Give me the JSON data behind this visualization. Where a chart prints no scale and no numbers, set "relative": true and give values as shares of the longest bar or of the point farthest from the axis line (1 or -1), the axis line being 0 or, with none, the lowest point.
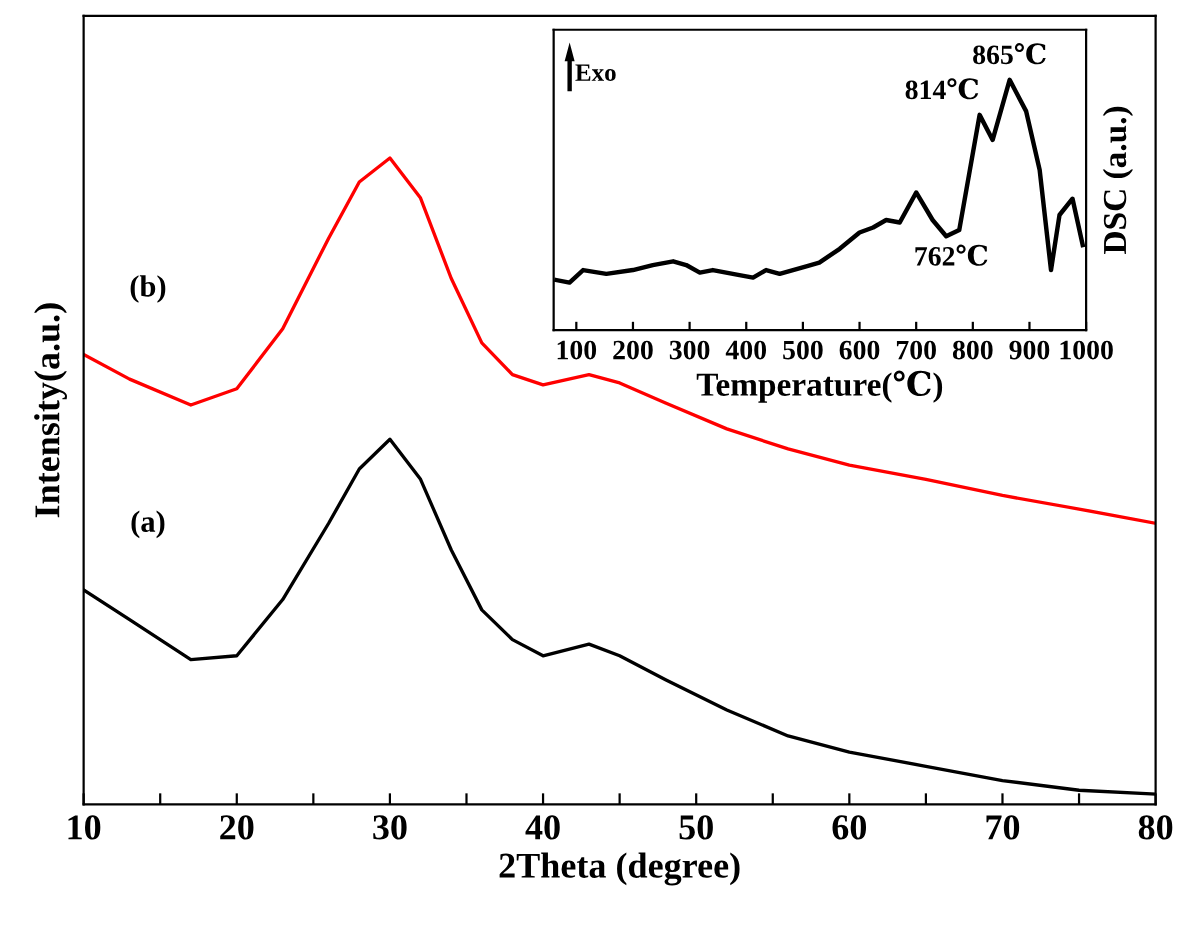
{
  "chart_data": [
    {
      "type": "line",
      "xlabel": "2Theta (degree)",
      "ylabel": "Intensity(a.u.)",
      "relative": true,
      "xlim": [
        10,
        80
      ],
      "xticks": [
        10,
        {
          "value": 15,
          "label": null
        },
        20,
        {
          "value": 25,
          "label": null
        },
        30,
        {
          "value": 35,
          "label": null
        },
        40,
        {
          "value": 45,
          "label": null
        },
        50,
        {
          "value": 55,
          "label": null
        },
        60,
        {
          "value": 65,
          "label": null
        },
        70,
        {
          "value": 75,
          "label": null
        },
        80
      ],
      "tick_labels": "x",
      "grid": false,
      "legend": false,
      "marker": "none",
      "line_style": "solid",
      "x": [
        10,
        13,
        17,
        20,
        23,
        26,
        28,
        30,
        32,
        34,
        36,
        38,
        40,
        43,
        45,
        48,
        52,
        56,
        60,
        65,
        70,
        75,
        80
      ],
      "series": [
        {
          "name": "(b)",
          "color": "#ff0000",
          "values": [
            0.696,
            0.658,
            0.618,
            0.643,
            0.736,
            0.876,
            0.963,
            1,
            0.938,
            0.814,
            0.714,
            0.665,
            0.649,
            0.665,
            0.652,
            0.621,
            0.581,
            0.55,
            0.525,
            0.503,
            0.478,
            0.457,
            0.435
          ]
        },
        {
          "name": "(a)",
          "color": "#000000",
          "values": [
            0.332,
            0.286,
            0.224,
            0.23,
            0.317,
            0.435,
            0.519,
            0.565,
            0.503,
            0.394,
            0.301,
            0.255,
            0.23,
            0.248,
            0.23,
            0.193,
            0.146,
            0.106,
            0.081,
            0.059,
            0.037,
            0.022,
            0.016
          ]
        }
      ]
    },
    {
      "type": "line",
      "xlabel": "Temperature(℃)",
      "y2label": "DSC (a.u.)",
      "relative": true,
      "xlim": [
        60,
        1000
      ],
      "xticks": [
        100,
        200,
        300,
        400,
        500,
        600,
        700,
        800,
        900,
        1000
      ],
      "tick_labels": "x",
      "grid": false,
      "legend": false,
      "marker": "none",
      "line_style": "solid",
      "annotations": [
        "Exo",
        {
          "text": "865℃",
          "x": 865,
          "y": 1
        },
        {
          "text": "814℃",
          "x": 812,
          "y": 0.86
        },
        {
          "text": "762℃",
          "x": 762,
          "y": 0.375
        }
      ],
      "x": [
        65,
        88,
        112,
        153,
        200,
        235,
        271,
        294,
        318,
        341,
        388,
        412,
        435,
        459,
        506,
        529,
        565,
        600,
        624,
        647,
        671,
        700,
        729,
        753,
        776,
        812,
        835,
        865,
        894,
        918,
        938,
        953,
        976,
        994
      ],
      "series": [
        {
          "color": "#000000",
          "values": [
            0.2,
            0.19,
            0.24,
            0.225,
            0.24,
            0.26,
            0.275,
            0.26,
            0.23,
            0.24,
            0.22,
            0.21,
            0.24,
            0.225,
            0.255,
            0.27,
            0.325,
            0.39,
            0.41,
            0.44,
            0.43,
            0.55,
            0.44,
            0.375,
            0.4,
            0.86,
            0.76,
            1,
            0.875,
            0.64,
            0.24,
            0.46,
            0.525,
            0.34
          ]
        }
      ]
    }
  ]
}
